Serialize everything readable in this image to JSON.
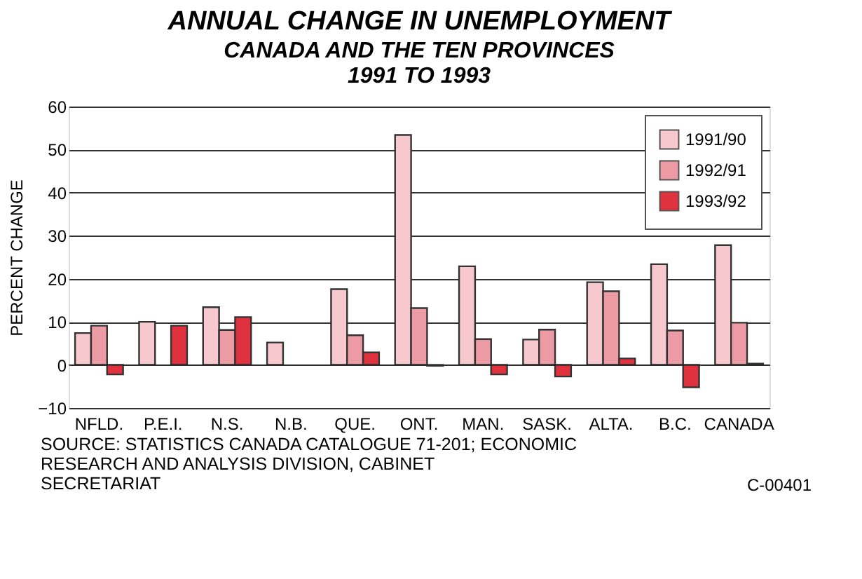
{
  "chart_data": {
    "type": "bar",
    "title": "ANNUAL CHANGE IN UNEMPLOYMENT",
    "subtitle": "CANADA AND THE TEN PROVINCES\n1991 TO 1993",
    "ylabel": "PERCENT CHANGE",
    "categories": [
      "NFLD.",
      "P.E.I.",
      "N.S.",
      "N.B.",
      "QUE.",
      "ONT.",
      "MAN.",
      "SASK.",
      "ALTA.",
      "B.C.",
      "CANADA"
    ],
    "series": [
      {
        "name": "1991/90",
        "color": "#f7c9ce",
        "values": [
          7.4,
          10,
          13.4,
          5.2,
          17.6,
          53.4,
          22.9,
          5.9,
          19.2,
          23.4,
          27.8
        ]
      },
      {
        "name": "1992/91",
        "color": "#ec9aa3",
        "values": [
          9.1,
          null,
          8.1,
          null,
          6.9,
          13.2,
          6.0,
          8.2,
          17.1,
          8.0,
          9.8
        ]
      },
      {
        "name": "1993/92",
        "color": "#e0323e",
        "values": [
          -2.2,
          9.1,
          11.1,
          null,
          2.9,
          -0.2,
          -2.2,
          -2.7,
          1.5,
          -5.2,
          0.3
        ]
      }
    ],
    "ylim": [
      -10,
      60
    ],
    "yticks": [
      -10,
      0,
      10,
      20,
      30,
      40,
      50,
      60
    ],
    "grid": "y",
    "legend": "top right",
    "annotations": [
      "SOURCE:    STATISTICS CANADA CATALOGUE 71-201; ECONOMIC\nRESEARCH AND ANALYSIS DIVISION, CABINET\nSECRETARIAT",
      "C-00401"
    ]
  }
}
